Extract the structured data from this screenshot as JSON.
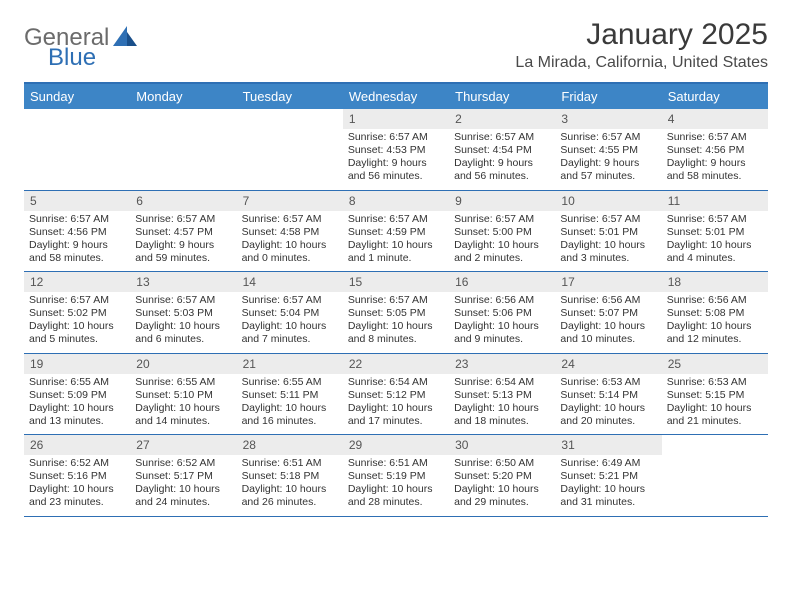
{
  "brand": {
    "part1": "General",
    "part2": "Blue"
  },
  "title": "January 2025",
  "location": "La Mirada, California, United States",
  "colors": {
    "header_bg": "#3d85c6",
    "header_text": "#ffffff",
    "border": "#2e6fb4",
    "daynum_bg": "#ececec",
    "text": "#333333",
    "brand_gray": "#6b6b6b",
    "brand_blue": "#2e6fb4"
  },
  "day_headers": [
    "Sunday",
    "Monday",
    "Tuesday",
    "Wednesday",
    "Thursday",
    "Friday",
    "Saturday"
  ],
  "weeks": [
    [
      {
        "day": "",
        "sunrise": "",
        "sunset": "",
        "daylight": ""
      },
      {
        "day": "",
        "sunrise": "",
        "sunset": "",
        "daylight": ""
      },
      {
        "day": "",
        "sunrise": "",
        "sunset": "",
        "daylight": ""
      },
      {
        "day": "1",
        "sunrise": "Sunrise: 6:57 AM",
        "sunset": "Sunset: 4:53 PM",
        "daylight": "Daylight: 9 hours and 56 minutes."
      },
      {
        "day": "2",
        "sunrise": "Sunrise: 6:57 AM",
        "sunset": "Sunset: 4:54 PM",
        "daylight": "Daylight: 9 hours and 56 minutes."
      },
      {
        "day": "3",
        "sunrise": "Sunrise: 6:57 AM",
        "sunset": "Sunset: 4:55 PM",
        "daylight": "Daylight: 9 hours and 57 minutes."
      },
      {
        "day": "4",
        "sunrise": "Sunrise: 6:57 AM",
        "sunset": "Sunset: 4:56 PM",
        "daylight": "Daylight: 9 hours and 58 minutes."
      }
    ],
    [
      {
        "day": "5",
        "sunrise": "Sunrise: 6:57 AM",
        "sunset": "Sunset: 4:56 PM",
        "daylight": "Daylight: 9 hours and 58 minutes."
      },
      {
        "day": "6",
        "sunrise": "Sunrise: 6:57 AM",
        "sunset": "Sunset: 4:57 PM",
        "daylight": "Daylight: 9 hours and 59 minutes."
      },
      {
        "day": "7",
        "sunrise": "Sunrise: 6:57 AM",
        "sunset": "Sunset: 4:58 PM",
        "daylight": "Daylight: 10 hours and 0 minutes."
      },
      {
        "day": "8",
        "sunrise": "Sunrise: 6:57 AM",
        "sunset": "Sunset: 4:59 PM",
        "daylight": "Daylight: 10 hours and 1 minute."
      },
      {
        "day": "9",
        "sunrise": "Sunrise: 6:57 AM",
        "sunset": "Sunset: 5:00 PM",
        "daylight": "Daylight: 10 hours and 2 minutes."
      },
      {
        "day": "10",
        "sunrise": "Sunrise: 6:57 AM",
        "sunset": "Sunset: 5:01 PM",
        "daylight": "Daylight: 10 hours and 3 minutes."
      },
      {
        "day": "11",
        "sunrise": "Sunrise: 6:57 AM",
        "sunset": "Sunset: 5:01 PM",
        "daylight": "Daylight: 10 hours and 4 minutes."
      }
    ],
    [
      {
        "day": "12",
        "sunrise": "Sunrise: 6:57 AM",
        "sunset": "Sunset: 5:02 PM",
        "daylight": "Daylight: 10 hours and 5 minutes."
      },
      {
        "day": "13",
        "sunrise": "Sunrise: 6:57 AM",
        "sunset": "Sunset: 5:03 PM",
        "daylight": "Daylight: 10 hours and 6 minutes."
      },
      {
        "day": "14",
        "sunrise": "Sunrise: 6:57 AM",
        "sunset": "Sunset: 5:04 PM",
        "daylight": "Daylight: 10 hours and 7 minutes."
      },
      {
        "day": "15",
        "sunrise": "Sunrise: 6:57 AM",
        "sunset": "Sunset: 5:05 PM",
        "daylight": "Daylight: 10 hours and 8 minutes."
      },
      {
        "day": "16",
        "sunrise": "Sunrise: 6:56 AM",
        "sunset": "Sunset: 5:06 PM",
        "daylight": "Daylight: 10 hours and 9 minutes."
      },
      {
        "day": "17",
        "sunrise": "Sunrise: 6:56 AM",
        "sunset": "Sunset: 5:07 PM",
        "daylight": "Daylight: 10 hours and 10 minutes."
      },
      {
        "day": "18",
        "sunrise": "Sunrise: 6:56 AM",
        "sunset": "Sunset: 5:08 PM",
        "daylight": "Daylight: 10 hours and 12 minutes."
      }
    ],
    [
      {
        "day": "19",
        "sunrise": "Sunrise: 6:55 AM",
        "sunset": "Sunset: 5:09 PM",
        "daylight": "Daylight: 10 hours and 13 minutes."
      },
      {
        "day": "20",
        "sunrise": "Sunrise: 6:55 AM",
        "sunset": "Sunset: 5:10 PM",
        "daylight": "Daylight: 10 hours and 14 minutes."
      },
      {
        "day": "21",
        "sunrise": "Sunrise: 6:55 AM",
        "sunset": "Sunset: 5:11 PM",
        "daylight": "Daylight: 10 hours and 16 minutes."
      },
      {
        "day": "22",
        "sunrise": "Sunrise: 6:54 AM",
        "sunset": "Sunset: 5:12 PM",
        "daylight": "Daylight: 10 hours and 17 minutes."
      },
      {
        "day": "23",
        "sunrise": "Sunrise: 6:54 AM",
        "sunset": "Sunset: 5:13 PM",
        "daylight": "Daylight: 10 hours and 18 minutes."
      },
      {
        "day": "24",
        "sunrise": "Sunrise: 6:53 AM",
        "sunset": "Sunset: 5:14 PM",
        "daylight": "Daylight: 10 hours and 20 minutes."
      },
      {
        "day": "25",
        "sunrise": "Sunrise: 6:53 AM",
        "sunset": "Sunset: 5:15 PM",
        "daylight": "Daylight: 10 hours and 21 minutes."
      }
    ],
    [
      {
        "day": "26",
        "sunrise": "Sunrise: 6:52 AM",
        "sunset": "Sunset: 5:16 PM",
        "daylight": "Daylight: 10 hours and 23 minutes."
      },
      {
        "day": "27",
        "sunrise": "Sunrise: 6:52 AM",
        "sunset": "Sunset: 5:17 PM",
        "daylight": "Daylight: 10 hours and 24 minutes."
      },
      {
        "day": "28",
        "sunrise": "Sunrise: 6:51 AM",
        "sunset": "Sunset: 5:18 PM",
        "daylight": "Daylight: 10 hours and 26 minutes."
      },
      {
        "day": "29",
        "sunrise": "Sunrise: 6:51 AM",
        "sunset": "Sunset: 5:19 PM",
        "daylight": "Daylight: 10 hours and 28 minutes."
      },
      {
        "day": "30",
        "sunrise": "Sunrise: 6:50 AM",
        "sunset": "Sunset: 5:20 PM",
        "daylight": "Daylight: 10 hours and 29 minutes."
      },
      {
        "day": "31",
        "sunrise": "Sunrise: 6:49 AM",
        "sunset": "Sunset: 5:21 PM",
        "daylight": "Daylight: 10 hours and 31 minutes."
      },
      {
        "day": "",
        "sunrise": "",
        "sunset": "",
        "daylight": ""
      }
    ]
  ]
}
